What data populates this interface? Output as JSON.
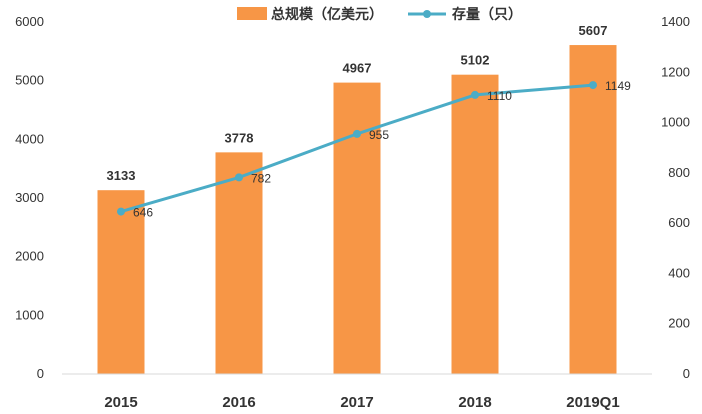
{
  "chart_data": {
    "type": "bar",
    "title": "",
    "xlabel": "",
    "ylabel": "",
    "categories": [
      "2015",
      "2016",
      "2017",
      "2018",
      "2019Q1"
    ],
    "series": [
      {
        "name": "总规模（亿美元）",
        "type": "bar",
        "axis": "left",
        "values": [
          3133,
          3778,
          4967,
          5102,
          5607
        ]
      },
      {
        "name": "存量（只）",
        "type": "line",
        "axis": "right",
        "values": [
          646,
          782,
          955,
          1110,
          1149
        ]
      }
    ],
    "ylim": [
      0,
      6000
    ],
    "y_ticks": [
      0,
      1000,
      2000,
      3000,
      4000,
      5000,
      6000
    ],
    "y2lim": [
      0,
      1400
    ],
    "y2_ticks": [
      0,
      200,
      400,
      600,
      800,
      1000,
      1200,
      1400
    ],
    "grid": false,
    "legend_position": "top-center",
    "colors": {
      "bar": "#F79646",
      "line": "#4BACC6",
      "axis": "#D9D9D9",
      "text": "#333333"
    }
  }
}
